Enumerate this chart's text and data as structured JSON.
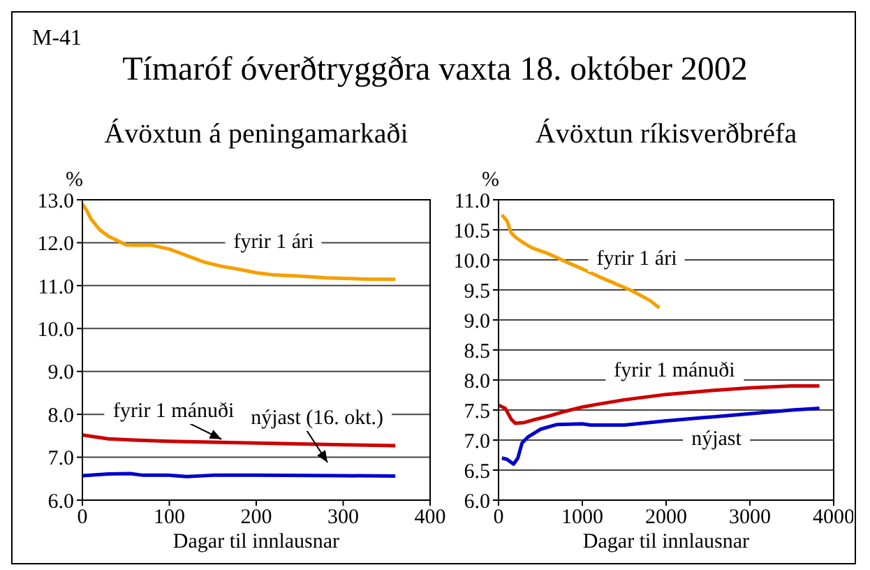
{
  "chart_data": [
    {
      "type": "line",
      "annotations": [
        "M-41",
        "Tímaróf óverðtryggðra vaxta 18. október 2002"
      ],
      "title": "Ávöxtun á peningamarkaði",
      "ylabel": "%",
      "xlabel": "Dagar til innlausnar",
      "xlim": [
        0,
        400
      ],
      "xticks": [
        0,
        100,
        200,
        300,
        400
      ],
      "ylim": [
        6,
        13
      ],
      "yticks": [
        {
          "value": 6,
          "label": "6.0"
        },
        {
          "value": 7,
          "label": "7.0"
        },
        {
          "value": 8,
          "label": "8.0"
        },
        {
          "value": 9,
          "label": "9.0"
        },
        {
          "value": 10,
          "label": "10.0"
        },
        {
          "value": 11,
          "label": "11.0"
        },
        {
          "value": 12,
          "label": "12.0"
        },
        {
          "value": 13,
          "label": "13.0"
        }
      ],
      "grid": "y",
      "legend": false,
      "marker": "none",
      "line_style": "solid",
      "series": [
        {
          "name": "fyrir 1 ári",
          "color": "#f5a000",
          "x": [
            0,
            5,
            10,
            20,
            30,
            40,
            50,
            60,
            80,
            100,
            120,
            140,
            160,
            180,
            200,
            220,
            250,
            280,
            300,
            330,
            360
          ],
          "values": [
            12.9,
            12.75,
            12.55,
            12.3,
            12.15,
            12.05,
            11.95,
            11.94,
            11.94,
            11.85,
            11.7,
            11.55,
            11.45,
            11.38,
            11.3,
            11.25,
            11.22,
            11.18,
            11.17,
            11.15,
            11.15
          ]
        },
        {
          "name": "fyrir 1 mánuði",
          "color": "#cc0000",
          "x": [
            0,
            30,
            60,
            100,
            150,
            200,
            250,
            300,
            360
          ],
          "values": [
            7.52,
            7.43,
            7.4,
            7.37,
            7.35,
            7.33,
            7.31,
            7.29,
            7.27
          ]
        },
        {
          "name": "nýjast (16. okt.)",
          "color": "#0000cc",
          "x": [
            0,
            30,
            55,
            70,
            100,
            120,
            150,
            200,
            300,
            360
          ],
          "values": [
            6.57,
            6.61,
            6.62,
            6.58,
            6.58,
            6.55,
            6.58,
            6.58,
            6.57,
            6.56
          ]
        }
      ]
    },
    {
      "type": "line",
      "title": "Ávöxtun ríkisverðbréfa",
      "ylabel": "%",
      "xlabel": "Dagar til innlausnar",
      "xlim": [
        0,
        4000
      ],
      "xticks": [
        0,
        1000,
        2000,
        3000,
        4000
      ],
      "ylim": [
        6,
        11
      ],
      "yticks": [
        {
          "value": 6,
          "label": "6.0"
        },
        {
          "value": 6.5,
          "label": "6.5"
        },
        {
          "value": 7,
          "label": "7.0"
        },
        {
          "value": 7.5,
          "label": "7.5"
        },
        {
          "value": 8,
          "label": "8.0"
        },
        {
          "value": 8.5,
          "label": "8.5"
        },
        {
          "value": 9,
          "label": "9.0"
        },
        {
          "value": 9.5,
          "label": "9.5"
        },
        {
          "value": 10,
          "label": "10.0"
        },
        {
          "value": 10.5,
          "label": "10.5"
        },
        {
          "value": 11,
          "label": "11.0"
        }
      ],
      "grid": "y",
      "legend": false,
      "marker": "none",
      "line_style": "solid",
      "series": [
        {
          "name": "fyrir 1 ári",
          "color": "#f5a000",
          "x": [
            40,
            100,
            150,
            200,
            300,
            400,
            600,
            800,
            1000,
            1200,
            1400,
            1600,
            1800,
            1920
          ],
          "values": [
            10.75,
            10.65,
            10.45,
            10.38,
            10.28,
            10.2,
            10.1,
            9.97,
            9.85,
            9.72,
            9.6,
            9.48,
            9.33,
            9.2
          ]
        },
        {
          "name": "fyrir 1 mánuði",
          "color": "#cc0000",
          "x": [
            0,
            80,
            150,
            200,
            300,
            400,
            600,
            800,
            1000,
            1200,
            1500,
            2000,
            2500,
            3000,
            3500,
            3830
          ],
          "values": [
            7.58,
            7.53,
            7.35,
            7.28,
            7.29,
            7.33,
            7.4,
            7.48,
            7.55,
            7.6,
            7.67,
            7.76,
            7.82,
            7.87,
            7.9,
            7.9
          ]
        },
        {
          "name": "nýjast",
          "color": "#0000cc",
          "x": [
            40,
            100,
            180,
            230,
            280,
            350,
            500,
            700,
            1000,
            1100,
            1500,
            2000,
            2500,
            3000,
            3500,
            3830
          ],
          "values": [
            6.7,
            6.68,
            6.6,
            6.7,
            6.95,
            7.05,
            7.18,
            7.26,
            7.27,
            7.25,
            7.25,
            7.32,
            7.38,
            7.44,
            7.5,
            7.53
          ]
        }
      ]
    }
  ]
}
